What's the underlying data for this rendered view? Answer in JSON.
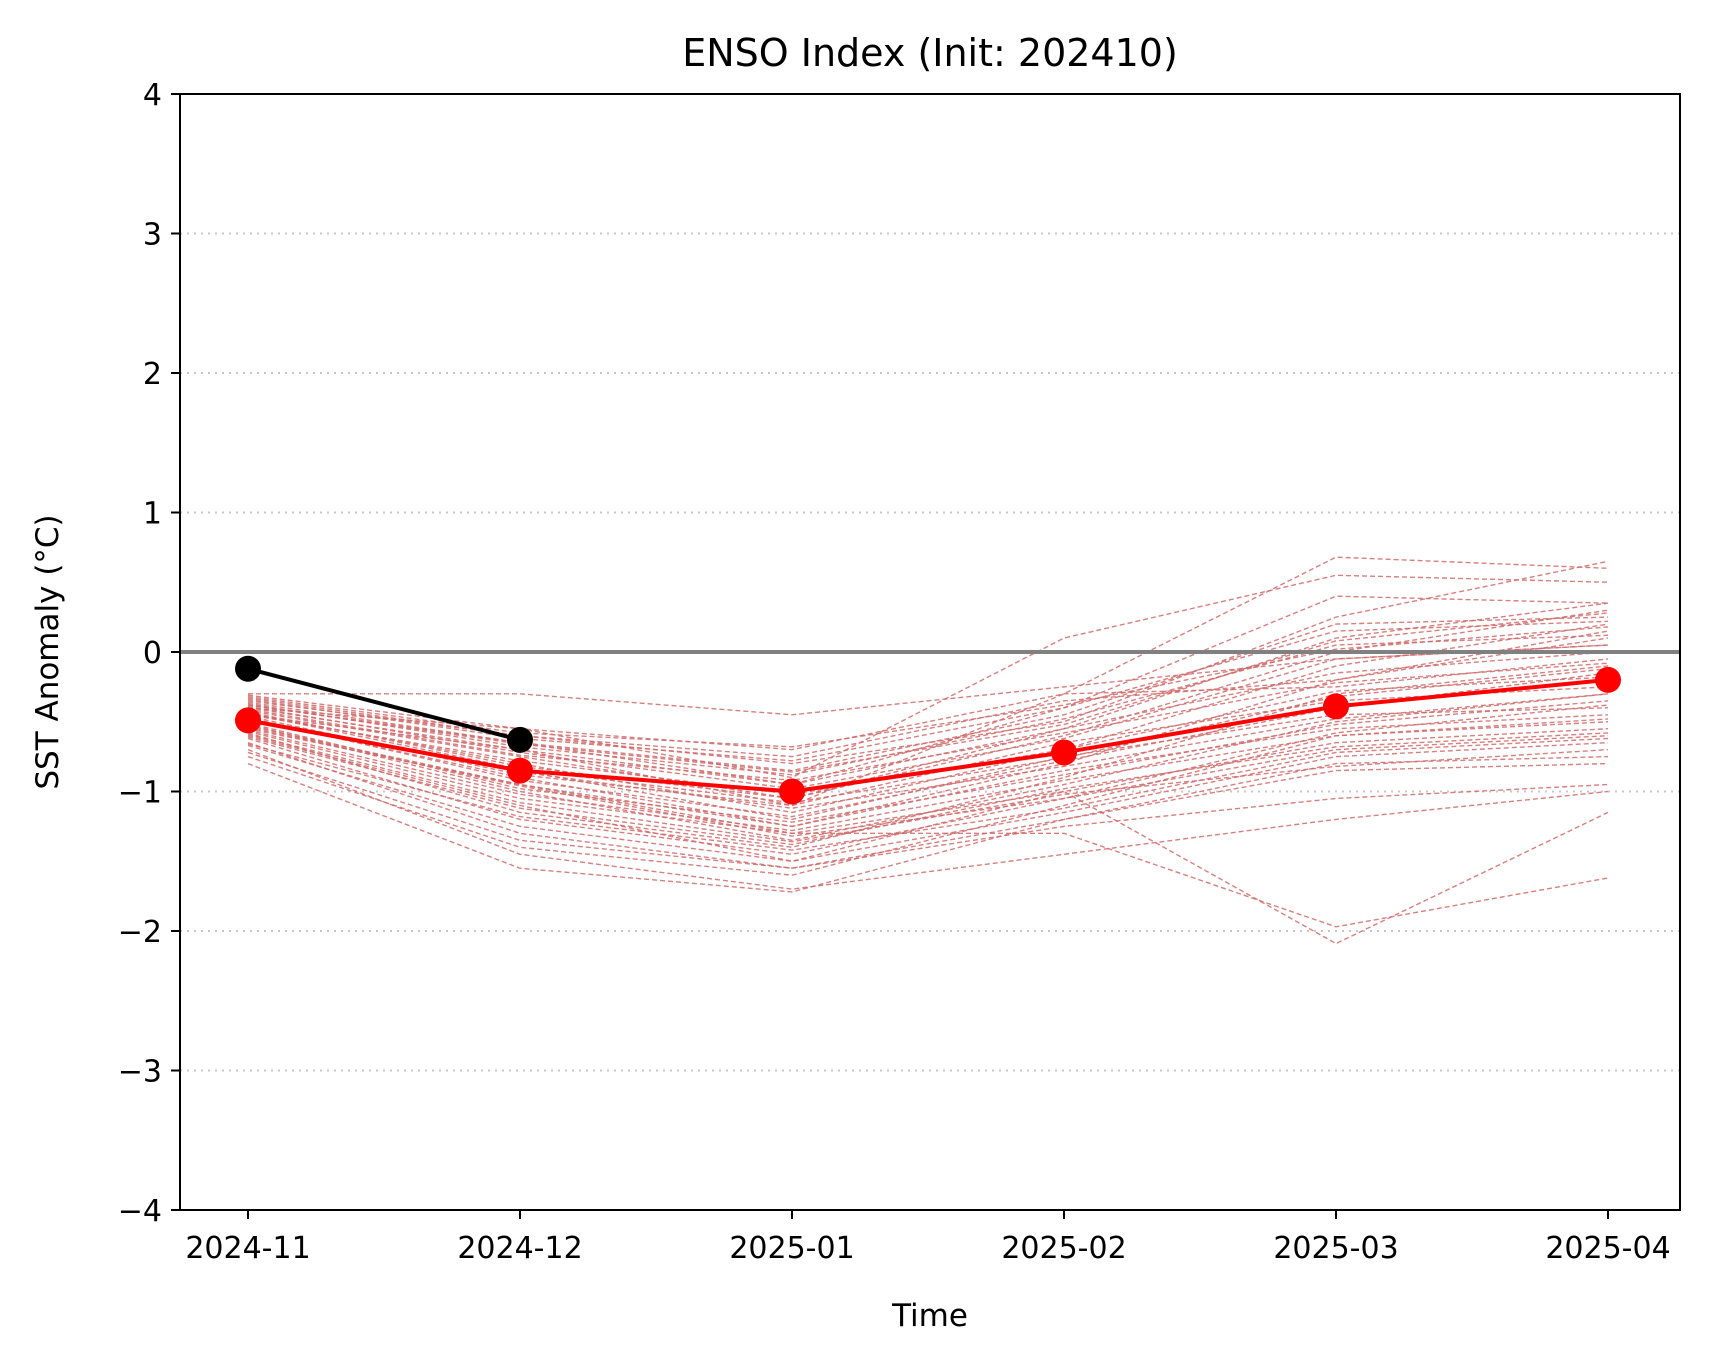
{
  "chart_data": {
    "type": "line",
    "title": "ENSO Index (Init: 202410)",
    "xlabel": "Time",
    "ylabel": "SST Anomaly (°C)",
    "x": [
      "2024-11",
      "2024-12",
      "2025-01",
      "2025-02",
      "2025-03",
      "2025-04"
    ],
    "ylim": [
      -4,
      4
    ],
    "yticks": [
      4,
      3,
      2,
      1,
      0,
      -1,
      -2,
      -3,
      -4
    ],
    "ytick_labels": [
      "4",
      "3",
      "2",
      "1",
      "0",
      "−1",
      "−2",
      "−3",
      "−4"
    ],
    "grid": "horizontal dotted",
    "zero_line": 0,
    "legend": "none",
    "series": [
      {
        "role": "observed",
        "color": "#000000",
        "x": [
          "2024-11",
          "2024-12"
        ],
        "values": [
          -0.12,
          -0.63
        ]
      },
      {
        "role": "ensemble-mean",
        "color": "#ff0000",
        "x": [
          "2024-11",
          "2024-12",
          "2025-01",
          "2025-02",
          "2025-03",
          "2025-04"
        ],
        "values": [
          -0.49,
          -0.85,
          -1.0,
          -0.72,
          -0.39,
          -0.2
        ]
      }
    ],
    "ensemble": {
      "color": "#d06a6a",
      "members": [
        [
          -0.49,
          -0.85,
          -1.0,
          -0.72,
          -0.39,
          -0.2
        ],
        [
          -0.3,
          -0.3,
          -0.45,
          -0.25,
          -0.05,
          0.05
        ],
        [
          -0.35,
          -0.6,
          -0.8,
          -0.5,
          0.25,
          0.65
        ],
        [
          -0.4,
          -0.55,
          -0.9,
          0.1,
          0.55,
          0.5
        ],
        [
          -0.45,
          -0.7,
          -1.1,
          -0.3,
          0.68,
          0.6
        ],
        [
          -0.38,
          -0.65,
          -0.95,
          -0.4,
          0.4,
          0.35
        ],
        [
          -0.55,
          -0.95,
          -1.3,
          -1.3,
          -1.97,
          -1.62
        ],
        [
          -0.6,
          -1.1,
          -1.5,
          -1.0,
          -2.09,
          -1.15
        ],
        [
          -0.7,
          -1.45,
          -1.7,
          -1.45,
          -1.2,
          -1.0
        ],
        [
          -0.8,
          -1.55,
          -1.72,
          -1.2,
          -0.8,
          -0.75
        ],
        [
          -0.75,
          -1.4,
          -1.6,
          -1.1,
          -0.6,
          -0.5
        ],
        [
          -0.65,
          -1.3,
          -1.55,
          -1.25,
          -1.05,
          -0.95
        ],
        [
          -0.58,
          -1.15,
          -1.4,
          -0.9,
          -0.3,
          -0.1
        ],
        [
          -0.52,
          -1.0,
          -1.35,
          -0.95,
          -0.5,
          -0.3
        ],
        [
          -0.48,
          -0.9,
          -1.25,
          -0.8,
          -0.2,
          0.1
        ],
        [
          -0.44,
          -0.8,
          -1.15,
          -0.7,
          -0.1,
          0.2
        ],
        [
          -0.42,
          -0.75,
          -1.05,
          -0.6,
          0.0,
          0.3
        ],
        [
          -0.4,
          -0.7,
          -0.95,
          -0.55,
          0.1,
          0.35
        ],
        [
          -0.36,
          -0.65,
          -0.85,
          -0.45,
          0.2,
          0.25
        ],
        [
          -0.33,
          -0.6,
          -0.75,
          -0.35,
          -0.2,
          0.15
        ],
        [
          -0.31,
          -0.55,
          -0.7,
          -0.3,
          -0.25,
          -0.05
        ],
        [
          -0.5,
          -0.85,
          -1.2,
          -0.75,
          -0.45,
          -0.4
        ],
        [
          -0.53,
          -0.95,
          -1.25,
          -0.85,
          -0.55,
          -0.45
        ],
        [
          -0.57,
          -1.05,
          -1.3,
          -1.0,
          -0.65,
          -0.55
        ],
        [
          -0.62,
          -1.2,
          -1.45,
          -1.05,
          -0.7,
          -0.6
        ],
        [
          -0.67,
          -1.25,
          -1.5,
          -1.15,
          -0.75,
          -0.65
        ],
        [
          -0.72,
          -1.35,
          -1.55,
          -1.2,
          -0.85,
          -0.8
        ],
        [
          -0.46,
          -0.88,
          -1.1,
          -0.65,
          -0.35,
          -0.25
        ],
        [
          -0.43,
          -0.82,
          -1.05,
          -0.55,
          -0.15,
          0.0
        ],
        [
          -0.47,
          -0.92,
          -1.18,
          -0.78,
          -0.4,
          -0.15
        ],
        [
          -0.51,
          -0.98,
          -1.22,
          -0.88,
          -0.52,
          -0.35
        ],
        [
          -0.39,
          -0.72,
          -0.98,
          -0.62,
          -0.05,
          0.05
        ],
        [
          -0.37,
          -0.68,
          -0.88,
          -0.48,
          0.05,
          0.12
        ],
        [
          -0.34,
          -0.62,
          -0.78,
          -0.4,
          0.15,
          0.22
        ],
        [
          -0.56,
          -1.02,
          -1.28,
          -0.92,
          -0.6,
          -0.48
        ],
        [
          -0.61,
          -1.12,
          -1.38,
          -0.98,
          -0.68,
          -0.58
        ],
        [
          -0.45,
          -0.78,
          -1.02,
          -0.7,
          -0.28,
          -0.18
        ],
        [
          -0.41,
          -0.74,
          -0.92,
          -0.58,
          -0.22,
          -0.08
        ],
        [
          -0.49,
          -0.86,
          -1.12,
          -0.82,
          -0.48,
          -0.3
        ],
        [
          -0.54,
          -0.96,
          -1.32,
          -1.05,
          -0.58,
          -0.38
        ],
        [
          -0.32,
          -0.58,
          -0.68,
          -0.38,
          0.02,
          0.18
        ],
        [
          -0.66,
          -1.18,
          -1.42,
          -1.12,
          -0.72,
          -0.62
        ],
        [
          -0.59,
          -1.08,
          -1.36,
          -1.02,
          -0.82,
          -0.7
        ],
        [
          -0.44,
          -0.84,
          -1.08,
          -0.76,
          -0.32,
          -0.12
        ],
        [
          -0.38,
          -0.66,
          -0.86,
          -0.52,
          0.08,
          0.28
        ]
      ]
    }
  }
}
